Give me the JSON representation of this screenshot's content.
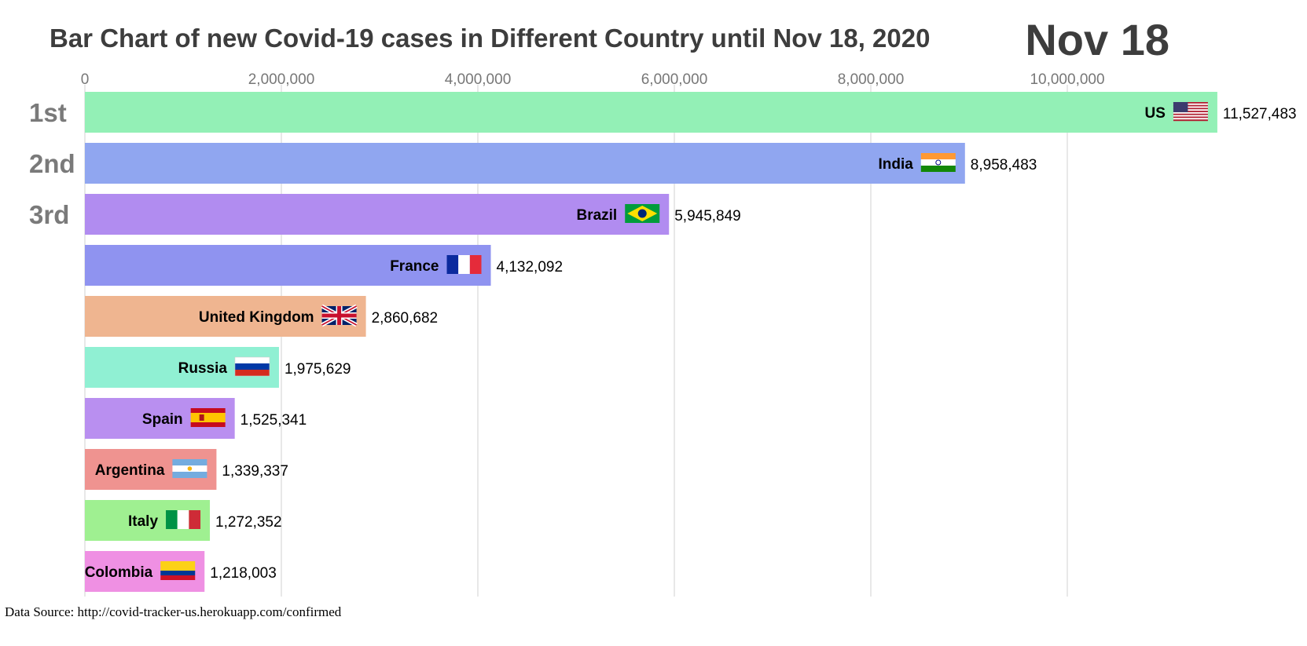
{
  "title": "Bar Chart of new Covid-19 cases in Different Country until Nov 18, 2020",
  "date_label": "Nov 18",
  "source_text": "Data Source: http://covid-tracker-us.herokuapp.com/confirmed",
  "chart_data": {
    "type": "bar",
    "orientation": "horizontal",
    "title": "Bar Chart of new Covid-19 cases in Different Country until Nov 18, 2020",
    "xlabel": "",
    "ylabel": "",
    "xlim": [
      0,
      12100000
    ],
    "xticks": [
      0,
      2000000,
      4000000,
      6000000,
      8000000,
      10000000
    ],
    "xtick_labels": [
      "0",
      "2,000,000",
      "4,000,000",
      "6,000,000",
      "8,000,000",
      "10,000,000"
    ],
    "grid": "vertical",
    "rank_labels": [
      "1st",
      "2nd",
      "3rd"
    ],
    "categories": [
      "US",
      "India",
      "Brazil",
      "France",
      "United Kingdom",
      "Russia",
      "Spain",
      "Argentina",
      "Italy",
      "Colombia"
    ],
    "values": [
      11527483,
      8958483,
      5945849,
      4132092,
      2860682,
      1975629,
      1525341,
      1339337,
      1272352,
      1218003
    ],
    "value_labels": [
      "11,527,483",
      "8,958,483",
      "5,945,849",
      "4,132,092",
      "2,860,682",
      "1,975,629",
      "1,525,341",
      "1,339,337",
      "1,272,352",
      "1,218,003"
    ],
    "colors": [
      "#93f0b6",
      "#90a6f0",
      "#b18cf0",
      "#8f93f0",
      "#efb590",
      "#90f0d3",
      "#b98ff0",
      "#ef9390",
      "#9ff091",
      "#ef90e3"
    ],
    "flags": [
      "us-flag",
      "india-flag",
      "brazil-flag",
      "france-flag",
      "uk-flag",
      "russia-flag",
      "spain-flag",
      "argentina-flag",
      "italy-flag",
      "colombia-flag"
    ]
  }
}
